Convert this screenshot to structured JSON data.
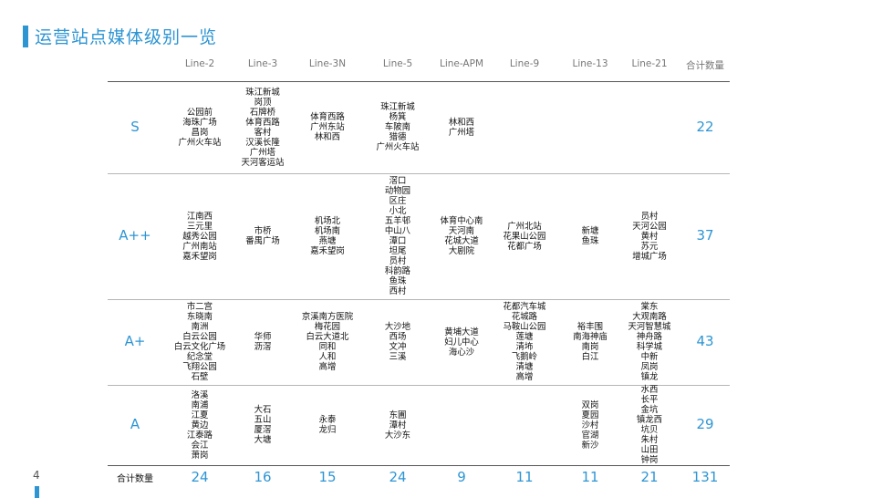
{
  "title": "运营站点媒体级别一览",
  "page_number": "4",
  "accent_color": "#2e95d3",
  "columns": [
    "Line-2",
    "Line-3",
    "Line-3N",
    "Line-5",
    "Line-APM",
    "Line-9",
    "Line-13",
    "Line-21",
    "合计数量"
  ],
  "rows": [
    {
      "grade": "S",
      "cells": [
        [
          "公园前",
          "海珠广场",
          "昌岗",
          "广州火车站"
        ],
        [
          "珠江新城",
          "岗顶",
          "石牌桥",
          "体育西路",
          "客村",
          "汉溪长隆",
          "广州塔",
          "天河客运站"
        ],
        [
          "体育西路",
          "广州东站",
          "林和西"
        ],
        [
          "珠江新城",
          "杨箕",
          "车陂南",
          "猎德",
          "广州火车站"
        ],
        [
          "林和西",
          "广州塔"
        ],
        [],
        [],
        []
      ],
      "total": "22"
    },
    {
      "grade": "A++",
      "cells": [
        [
          "江南西",
          "三元里",
          "越秀公园",
          "广州南站",
          "嘉禾望岗"
        ],
        [
          "市桥",
          "番禺广场"
        ],
        [
          "机场北",
          "机场南",
          "燕塘",
          "嘉禾望岗"
        ],
        [
          "滘口",
          "动物园",
          "区庄",
          "小北",
          "五羊邨",
          "中山八",
          "潭口",
          "坦尾",
          "员村",
          "科韵路",
          "鱼珠",
          "西村"
        ],
        [
          "体育中心南",
          "天河南",
          "花城大道",
          "大剧院"
        ],
        [
          "广州北站",
          "花果山公园",
          "花都广场"
        ],
        [
          "新塘",
          "鱼珠"
        ],
        [
          "员村",
          "天河公园",
          "黄村",
          "苏元",
          "增城广场"
        ]
      ],
      "total": "37"
    },
    {
      "grade": "A+",
      "cells": [
        [
          "市二宫",
          "东晓南",
          "南洲",
          "白云公园",
          "白云文化广场",
          "纪念堂",
          "飞翔公园",
          "石壁"
        ],
        [
          "华师",
          "沥滘"
        ],
        [
          "京溪南方医院",
          "梅花园",
          "白云大道北",
          "同和",
          "人和",
          "高增"
        ],
        [
          "大沙地",
          "西场",
          "文冲",
          "三溪"
        ],
        [
          "黄埔大道",
          "妇儿中心",
          "海心沙"
        ],
        [
          "花都汽车城",
          "花城路",
          "马鞍山公园",
          "莲塘",
          "清㘵",
          "飞鹅岭",
          "清塘",
          "高增"
        ],
        [
          "裕丰围",
          "南海神庙",
          "南岗",
          "白江"
        ],
        [
          "棠东",
          "大观南路",
          "天河智慧城",
          "神舟路",
          "科学城",
          "中新",
          "凤岗",
          "镇龙"
        ]
      ],
      "total": "43"
    },
    {
      "grade": "A",
      "cells": [
        [
          "洛溪",
          "南浦",
          "江夏",
          "黄边",
          "江泰路",
          "会江",
          "萧岗"
        ],
        [
          "大石",
          "五山",
          "厦滘",
          "大塘"
        ],
        [
          "永泰",
          "龙归"
        ],
        [
          "东圃",
          "潭村",
          "大沙东"
        ],
        [],
        [],
        [
          "双岗",
          "夏园",
          "沙村",
          "官湖",
          "新沙"
        ],
        [
          "水西",
          "长平",
          "金坑",
          "镇龙西",
          "坑贝",
          "朱村",
          "山田",
          "钟岗"
        ]
      ],
      "total": "29"
    }
  ],
  "summary": {
    "label": "合计数量",
    "values": [
      "24",
      "16",
      "15",
      "24",
      "9",
      "11",
      "11",
      "21"
    ],
    "grand_total": "131"
  }
}
